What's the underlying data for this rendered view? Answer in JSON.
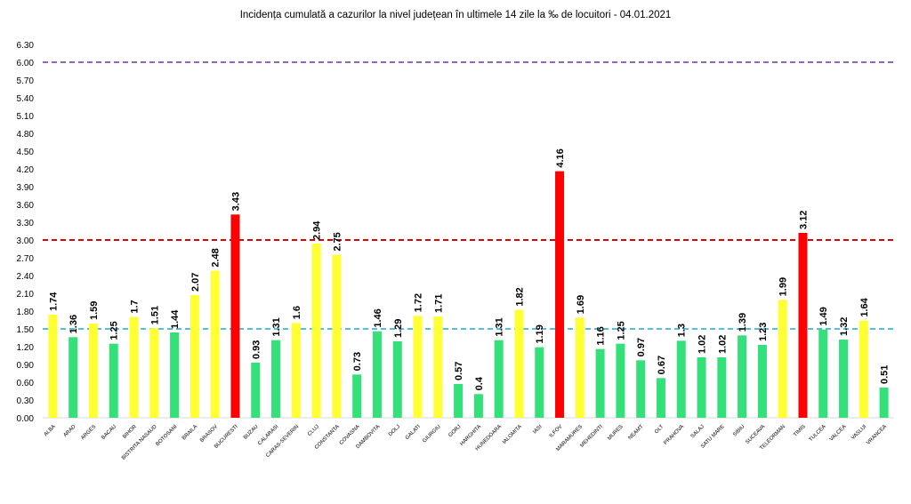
{
  "chart_data": {
    "type": "bar",
    "title": "Incidența cumulată a cazurilor la nivel județean în ultimele 14 zile la ‰ de locuitori - 04.01.2021",
    "xlabel": "",
    "ylabel": "",
    "ylim": [
      0,
      6.3
    ],
    "yticks": [
      "0.00",
      "0.30",
      "0.60",
      "0.90",
      "1.20",
      "1.50",
      "1.80",
      "2.10",
      "2.40",
      "2.70",
      "3.00",
      "3.30",
      "3.60",
      "3.90",
      "4.20",
      "4.50",
      "4.80",
      "5.10",
      "5.40",
      "5.70",
      "6.00",
      "6.30"
    ],
    "grid": false,
    "categories": [
      "ALBA",
      "ARAD",
      "ARGES",
      "BACAU",
      "BIHOR",
      "BISTRITA NASAUD",
      "BOTOSANI",
      "BRAILA",
      "BRASOV",
      "BUCURESTI",
      "BUZAU",
      "CALARASI",
      "CARAS-SEVERIN",
      "CLUJ",
      "CONSTANTA",
      "COVASNA",
      "DAMBOVITA",
      "DOLJ",
      "GALATI",
      "GIURGIU",
      "GORJ",
      "HARGHITA",
      "HUNEDOARA",
      "IALOMITA",
      "IASI",
      "ILFOV",
      "MARAMURES",
      "MEHEDINTI",
      "MURES",
      "NEAMT",
      "OLT",
      "PRAHOVA",
      "SALAJ",
      "SATU MARE",
      "SIBIU",
      "SUCEAVA",
      "TELEORMAN",
      "TIMIS",
      "TULCEA",
      "VALCEA",
      "VASLUI",
      "VRANCEA"
    ],
    "values": [
      1.74,
      1.36,
      1.59,
      1.25,
      1.7,
      1.51,
      1.44,
      2.07,
      2.48,
      3.43,
      0.93,
      1.31,
      1.6,
      2.94,
      2.75,
      0.73,
      1.46,
      1.29,
      1.72,
      1.71,
      0.57,
      0.4,
      1.31,
      1.82,
      1.19,
      4.16,
      1.69,
      1.16,
      1.25,
      0.97,
      0.67,
      1.3,
      1.02,
      1.02,
      1.39,
      1.23,
      1.99,
      3.12,
      1.49,
      1.32,
      1.64,
      0.51
    ],
    "labels": [
      "1.74",
      "1.36",
      "1.59",
      "1.25",
      "1.7",
      "1.51",
      "1.44",
      "2.07",
      "2.48",
      "3.43",
      "0.93",
      "1.31",
      "1.6",
      "2.94",
      "2.75",
      "0.73",
      "1.46",
      "1.29",
      "1.72",
      "1.71",
      "0.57",
      "0.4",
      "1.31",
      "1.82",
      "1.19",
      "4.16",
      "1.69",
      "1.16",
      "1.25",
      "0.97",
      "0.67",
      "1.3",
      "1.02",
      "1.02",
      "1.39",
      "1.23",
      "1.99",
      "3.12",
      "1.49",
      "1.32",
      "1.64",
      "0.51"
    ],
    "thresholds": [
      {
        "value": 6.0,
        "color": "#7030a0"
      },
      {
        "value": 3.0,
        "color": "#e00000"
      },
      {
        "value": 1.5,
        "color": "#1fa8c9"
      }
    ],
    "colors": {
      "green": "#33e07a",
      "yellow": "#ffff33",
      "red": "#ff0000"
    }
  }
}
